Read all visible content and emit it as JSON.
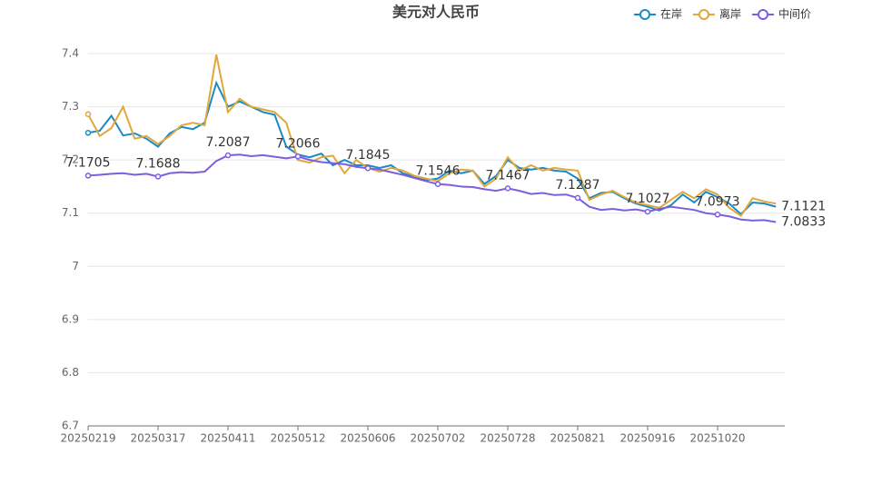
{
  "chart_data": {
    "type": "line",
    "title": "美元对人民币",
    "categories": [
      "20250219",
      null,
      null,
      null,
      null,
      null,
      "20250317",
      null,
      null,
      null,
      null,
      null,
      "20250411",
      null,
      null,
      null,
      null,
      null,
      "20250512",
      null,
      null,
      null,
      null,
      null,
      "20250606",
      null,
      null,
      null,
      null,
      null,
      "20250702",
      null,
      null,
      null,
      null,
      null,
      "20250728",
      null,
      null,
      null,
      null,
      null,
      "20250821",
      null,
      null,
      null,
      null,
      null,
      "20250916",
      null,
      null,
      null,
      null,
      null,
      "20251020",
      null,
      null,
      null,
      null,
      null
    ],
    "series": [
      {
        "name": "在岸",
        "color": "#1a8ac6",
        "end_label": true,
        "values": [
          7.251,
          7.255,
          7.283,
          7.246,
          7.25,
          7.24,
          7.225,
          7.25,
          7.262,
          7.258,
          7.27,
          7.345,
          7.3,
          7.31,
          7.3,
          7.29,
          7.285,
          7.225,
          7.21,
          7.205,
          7.212,
          7.19,
          7.2,
          7.19,
          7.19,
          7.185,
          7.19,
          7.175,
          7.168,
          7.162,
          7.165,
          7.18,
          7.175,
          7.18,
          7.155,
          7.17,
          7.2,
          7.185,
          7.182,
          7.185,
          7.18,
          7.178,
          7.165,
          7.128,
          7.138,
          7.14,
          7.128,
          7.118,
          7.112,
          7.105,
          7.115,
          7.135,
          7.12,
          7.14,
          7.13,
          7.118,
          7.098,
          7.12,
          7.118,
          7.1121
        ]
      },
      {
        "name": "离岸",
        "color": "#e0a73a",
        "values": [
          7.286,
          7.245,
          7.26,
          7.3,
          7.24,
          7.245,
          7.23,
          7.245,
          7.265,
          7.27,
          7.265,
          7.398,
          7.29,
          7.315,
          7.3,
          7.295,
          7.29,
          7.27,
          7.2,
          7.195,
          7.205,
          7.208,
          7.175,
          7.2,
          7.185,
          7.178,
          7.185,
          7.18,
          7.17,
          7.165,
          7.16,
          7.175,
          7.182,
          7.18,
          7.15,
          7.165,
          7.205,
          7.18,
          7.19,
          7.18,
          7.185,
          7.182,
          7.18,
          7.125,
          7.135,
          7.142,
          7.13,
          7.12,
          7.115,
          7.11,
          7.125,
          7.14,
          7.128,
          7.145,
          7.135,
          7.11,
          7.095,
          7.128,
          7.122,
          7.118
        ]
      },
      {
        "name": "中间价",
        "color": "#7e5ee0",
        "point_labels": true,
        "end_label": true,
        "values": [
          7.1705,
          7.172,
          7.174,
          7.175,
          7.172,
          7.174,
          7.1688,
          7.175,
          7.177,
          7.176,
          7.178,
          7.198,
          7.2087,
          7.21,
          7.207,
          7.209,
          7.206,
          7.203,
          7.2066,
          7.2,
          7.196,
          7.194,
          7.192,
          7.187,
          7.1845,
          7.182,
          7.177,
          7.172,
          7.166,
          7.16,
          7.1546,
          7.153,
          7.15,
          7.149,
          7.145,
          7.142,
          7.1467,
          7.142,
          7.136,
          7.138,
          7.134,
          7.135,
          7.1287,
          7.112,
          7.106,
          7.108,
          7.105,
          7.107,
          7.1027,
          7.108,
          7.112,
          7.109,
          7.106,
          7.1,
          7.0973,
          7.094,
          7.088,
          7.086,
          7.087,
          7.0833
        ]
      }
    ],
    "ylim": [
      6.7,
      7.4
    ],
    "yticks": [
      6.7,
      6.8,
      6.9,
      7,
      7.1,
      7.2,
      7.3,
      7.4
    ],
    "grid": true,
    "legend": "top-right"
  }
}
